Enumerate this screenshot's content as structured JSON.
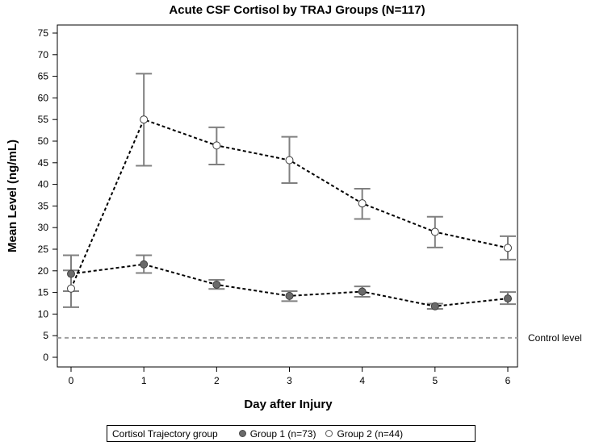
{
  "chart_data": {
    "type": "line",
    "title": "Acute CSF Cortisol by TRAJ Groups (N=117)",
    "xlabel": "Day after Injury",
    "ylabel": "Mean Level (ng/mL)",
    "x": [
      0,
      1,
      2,
      3,
      4,
      5,
      6
    ],
    "xlim": [
      0,
      6
    ],
    "ylim": [
      0,
      75
    ],
    "yticks": [
      0,
      5,
      10,
      15,
      20,
      25,
      30,
      35,
      40,
      45,
      50,
      55,
      60,
      65,
      70,
      75
    ],
    "series": [
      {
        "name": "Group 1 (n=73)",
        "marker": "filled",
        "values": [
          19.3,
          21.5,
          16.8,
          14.2,
          15.2,
          11.8,
          13.6
        ],
        "lower": [
          15.3,
          19.5,
          15.8,
          13.0,
          14.0,
          11.2,
          12.3
        ],
        "upper": [
          23.6,
          23.6,
          17.9,
          15.3,
          16.4,
          12.4,
          15.1
        ]
      },
      {
        "name": "Group 2 (n=44)",
        "marker": "open",
        "values": [
          15.9,
          55.0,
          49.0,
          45.6,
          35.6,
          29.0,
          25.3
        ],
        "lower": [
          11.6,
          44.3,
          44.6,
          40.3,
          32.0,
          25.4,
          22.6
        ],
        "upper": [
          20.1,
          65.6,
          53.2,
          51.0,
          39.0,
          32.5,
          28.0
        ]
      }
    ],
    "reference_line": {
      "y": 4.5,
      "label": "Control level"
    },
    "legend": {
      "title": "Cortisol Trajectory group",
      "position": "bottom"
    }
  },
  "colors": {
    "errorbar": "#808080",
    "marker_fill": "#6a6a6a",
    "marker_stroke": "#404040",
    "line": "#000000",
    "reference": "#a0a0a0"
  }
}
